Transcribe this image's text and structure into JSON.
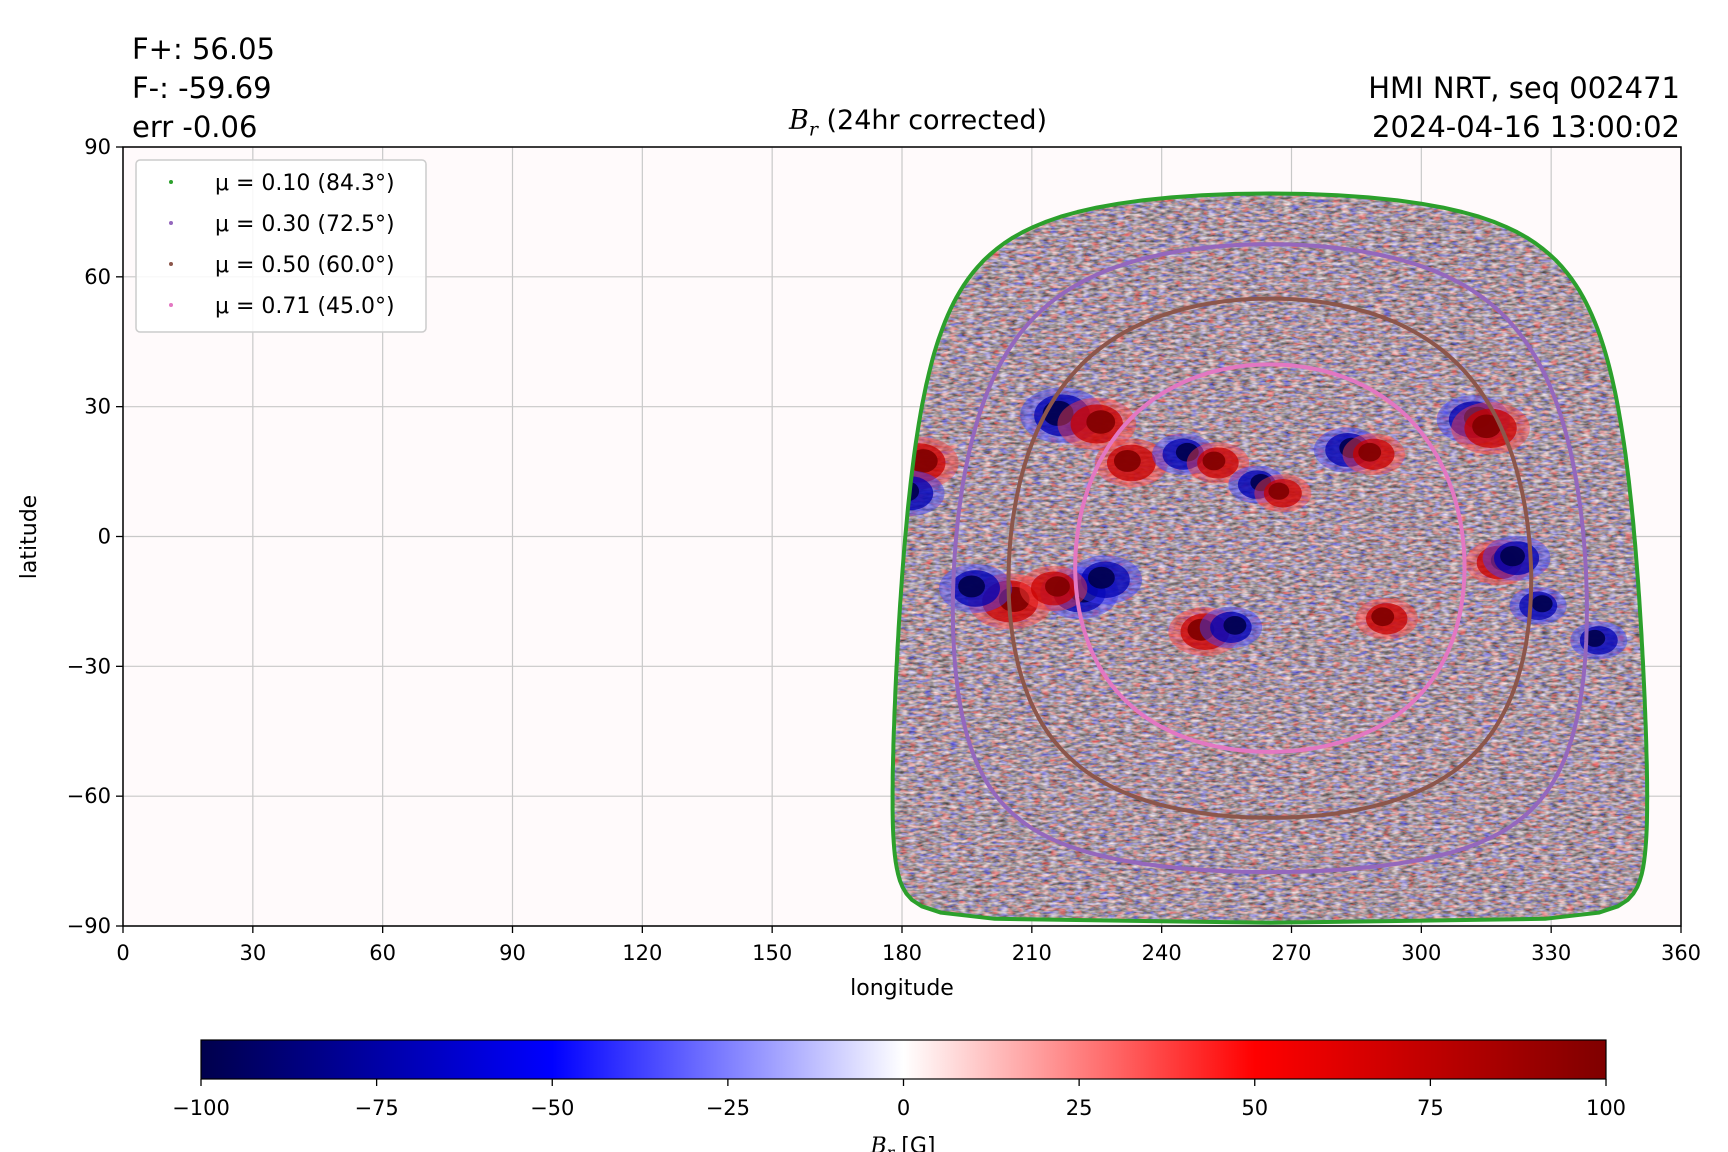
{
  "header": {
    "flux_pos": "F+: 56.05",
    "flux_neg": "F-: -59.69",
    "err": "err -0.06",
    "title_main": "B",
    "title_sub": "r",
    "title_rest": " (24hr corrected)",
    "source": "HMI NRT, seq 002471",
    "timestamp": "2024-04-16 13:00:02"
  },
  "chart_data": {
    "type": "heatmap",
    "xlabel": "longitude",
    "ylabel": "latitude",
    "xlim": [
      0,
      360
    ],
    "ylim": [
      -90,
      90
    ],
    "x_ticks": [
      0,
      30,
      60,
      90,
      120,
      150,
      180,
      210,
      240,
      270,
      300,
      330,
      360
    ],
    "y_ticks": [
      -90,
      -60,
      -30,
      0,
      30,
      60,
      90
    ],
    "grid": true,
    "legend_position": "top-left",
    "disk_center": {
      "lon": 265,
      "lat": -5
    },
    "contours": [
      {
        "label": "μ = 0.10 (84.3°)",
        "mu": 0.1,
        "angle_deg": 84.3,
        "color": "#2ca02c"
      },
      {
        "label": "μ = 0.30 (72.5°)",
        "mu": 0.3,
        "angle_deg": 72.5,
        "color": "#9467bd"
      },
      {
        "label": "μ = 0.50 (60.0°)",
        "mu": 0.5,
        "angle_deg": 60.0,
        "color": "#8c564b"
      },
      {
        "label": "μ = 0.71 (45.0°)",
        "mu": 0.71,
        "angle_deg": 45.0,
        "color": "#e377c2"
      }
    ],
    "active_regions": [
      {
        "lon": 217,
        "lat": 28,
        "sign": "negative",
        "strength": 1.0
      },
      {
        "lon": 225,
        "lat": 26,
        "sign": "positive",
        "strength": 0.9
      },
      {
        "lon": 233,
        "lat": 17,
        "sign": "positive",
        "strength": 0.8
      },
      {
        "lon": 184,
        "lat": 17,
        "sign": "positive",
        "strength": 0.9
      },
      {
        "lon": 182,
        "lat": 10,
        "sign": "negative",
        "strength": 0.7
      },
      {
        "lon": 245,
        "lat": 19,
        "sign": "negative",
        "strength": 0.6
      },
      {
        "lon": 253,
        "lat": 17,
        "sign": "positive",
        "strength": 0.6
      },
      {
        "lon": 262,
        "lat": 12,
        "sign": "negative",
        "strength": 0.5
      },
      {
        "lon": 268,
        "lat": 10,
        "sign": "positive",
        "strength": 0.5
      },
      {
        "lon": 283,
        "lat": 20,
        "sign": "negative",
        "strength": 0.7
      },
      {
        "lon": 289,
        "lat": 19,
        "sign": "positive",
        "strength": 0.6
      },
      {
        "lon": 312,
        "lat": 27,
        "sign": "negative",
        "strength": 0.8
      },
      {
        "lon": 316,
        "lat": 25,
        "sign": "positive",
        "strength": 0.9
      },
      {
        "lon": 205,
        "lat": -15,
        "sign": "positive",
        "strength": 1.0
      },
      {
        "lon": 197,
        "lat": -12,
        "sign": "negative",
        "strength": 0.8
      },
      {
        "lon": 221,
        "lat": -13,
        "sign": "negative",
        "strength": 0.9
      },
      {
        "lon": 227,
        "lat": -10,
        "sign": "negative",
        "strength": 0.8
      },
      {
        "lon": 215,
        "lat": -12,
        "sign": "positive",
        "strength": 0.7
      },
      {
        "lon": 250,
        "lat": -22,
        "sign": "positive",
        "strength": 0.8
      },
      {
        "lon": 256,
        "lat": -21,
        "sign": "negative",
        "strength": 0.6
      },
      {
        "lon": 292,
        "lat": -19,
        "sign": "positive",
        "strength": 0.6
      },
      {
        "lon": 318,
        "lat": -6,
        "sign": "positive",
        "strength": 0.7
      },
      {
        "lon": 322,
        "lat": -5,
        "sign": "negative",
        "strength": 0.7
      },
      {
        "lon": 327,
        "lat": -16,
        "sign": "negative",
        "strength": 0.5
      },
      {
        "lon": 341,
        "lat": -24,
        "sign": "negative",
        "strength": 0.5
      }
    ],
    "colorbar": {
      "label_main": "B",
      "label_sub": "r",
      "label_unit": " [G]",
      "min": -100,
      "max": 100,
      "ticks": [
        -100,
        -75,
        -50,
        -25,
        0,
        25,
        50,
        75,
        100
      ],
      "colormap": "seismic",
      "stops": [
        "#00004c",
        "#0000ff",
        "#ffffff",
        "#ff0000",
        "#7f0000"
      ]
    }
  }
}
